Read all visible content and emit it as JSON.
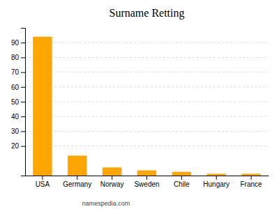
{
  "chart_data": {
    "type": "bar",
    "title": "Surname Retting",
    "categories": [
      "USA",
      "Germany",
      "Norway",
      "Sweden",
      "Chile",
      "Hungary",
      "France"
    ],
    "values": [
      94,
      13.5,
      5.5,
      3.5,
      2.5,
      1.2,
      1.2
    ],
    "color": "#FFA500",
    "ylim": [
      0,
      100
    ],
    "yticks": [
      20,
      30,
      40,
      50,
      60,
      70,
      80,
      90
    ],
    "grid": true,
    "annotations": [
      "namespedia.com"
    ]
  }
}
